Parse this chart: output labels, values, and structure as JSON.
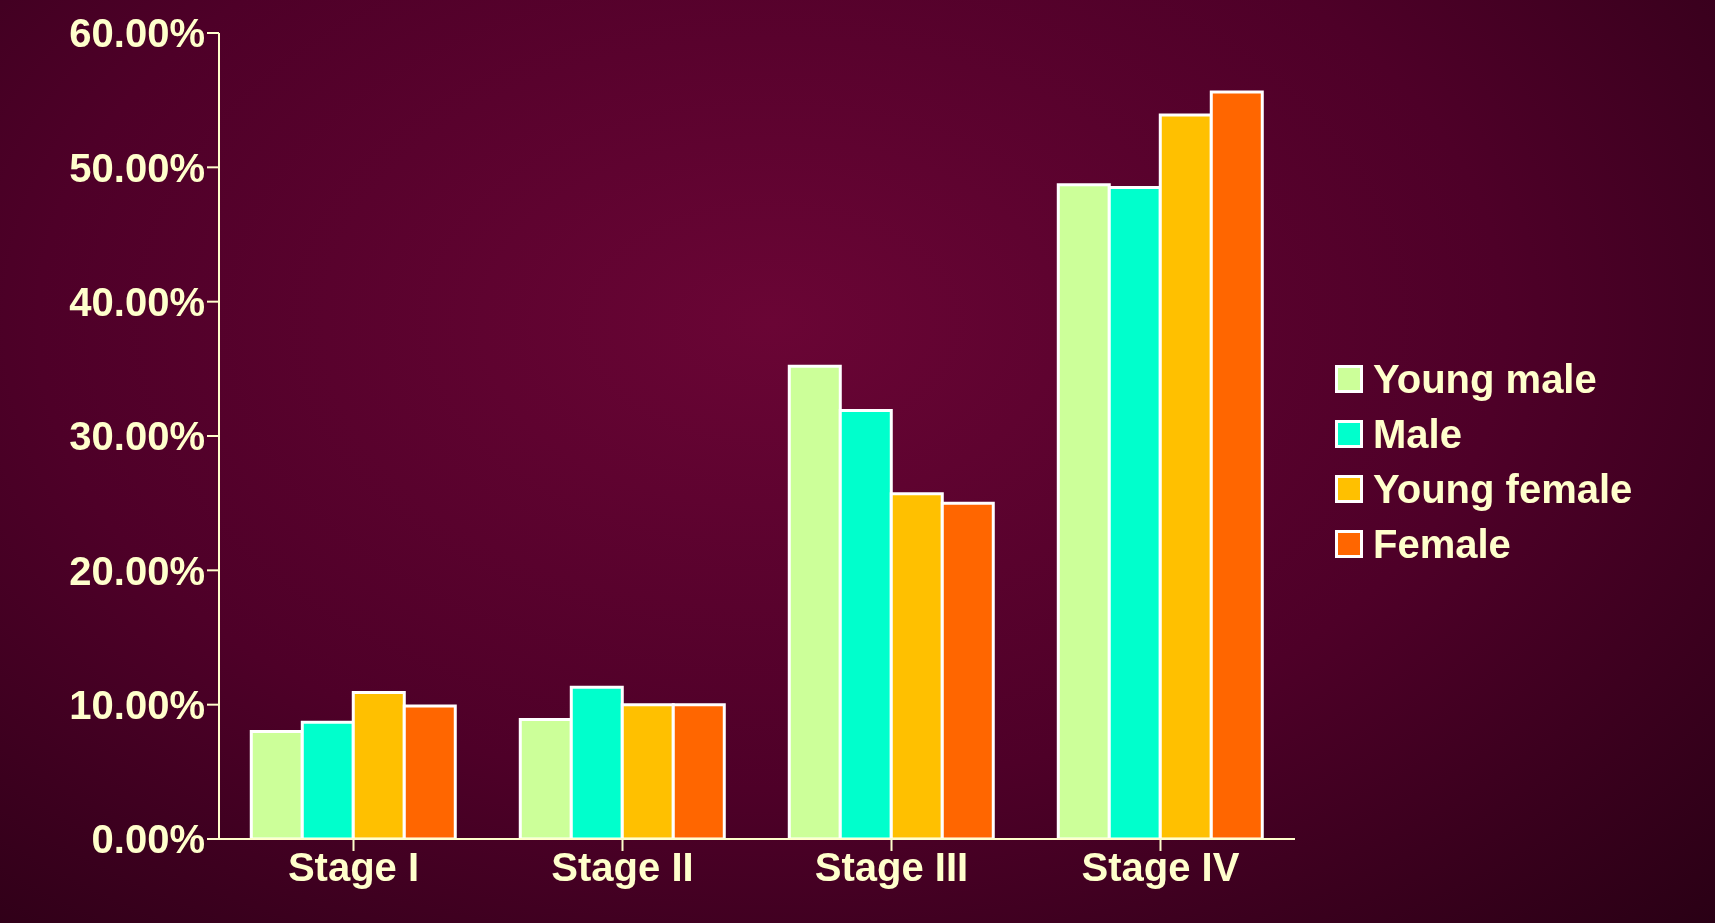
{
  "chart_data": {
    "type": "bar",
    "categories": [
      "Stage I",
      "Stage II",
      "Stage III",
      "Stage IV"
    ],
    "series": [
      {
        "name": "Young male",
        "color": "#ccff99",
        "values": [
          8.0,
          8.9,
          35.2,
          48.7
        ]
      },
      {
        "name": "Male",
        "color": "#00ffcc",
        "values": [
          8.7,
          11.3,
          31.9,
          48.5
        ]
      },
      {
        "name": "Young female",
        "color": "#ffc000",
        "values": [
          10.9,
          10.0,
          25.7,
          53.9
        ]
      },
      {
        "name": "Female",
        "color": "#ff6600",
        "values": [
          9.9,
          10.0,
          25.0,
          55.6
        ]
      }
    ],
    "ylim": [
      0,
      60
    ],
    "yticks": [
      {
        "value": 0,
        "label": "0.00%"
      },
      {
        "value": 10,
        "label": "10.00%"
      },
      {
        "value": 20,
        "label": "20.00%"
      },
      {
        "value": 30,
        "label": "30.00%"
      },
      {
        "value": 40,
        "label": "40.00%"
      },
      {
        "value": 50,
        "label": "50.00%"
      },
      {
        "value": 60,
        "label": "60.00%"
      }
    ],
    "grid": false,
    "legend": "right"
  }
}
